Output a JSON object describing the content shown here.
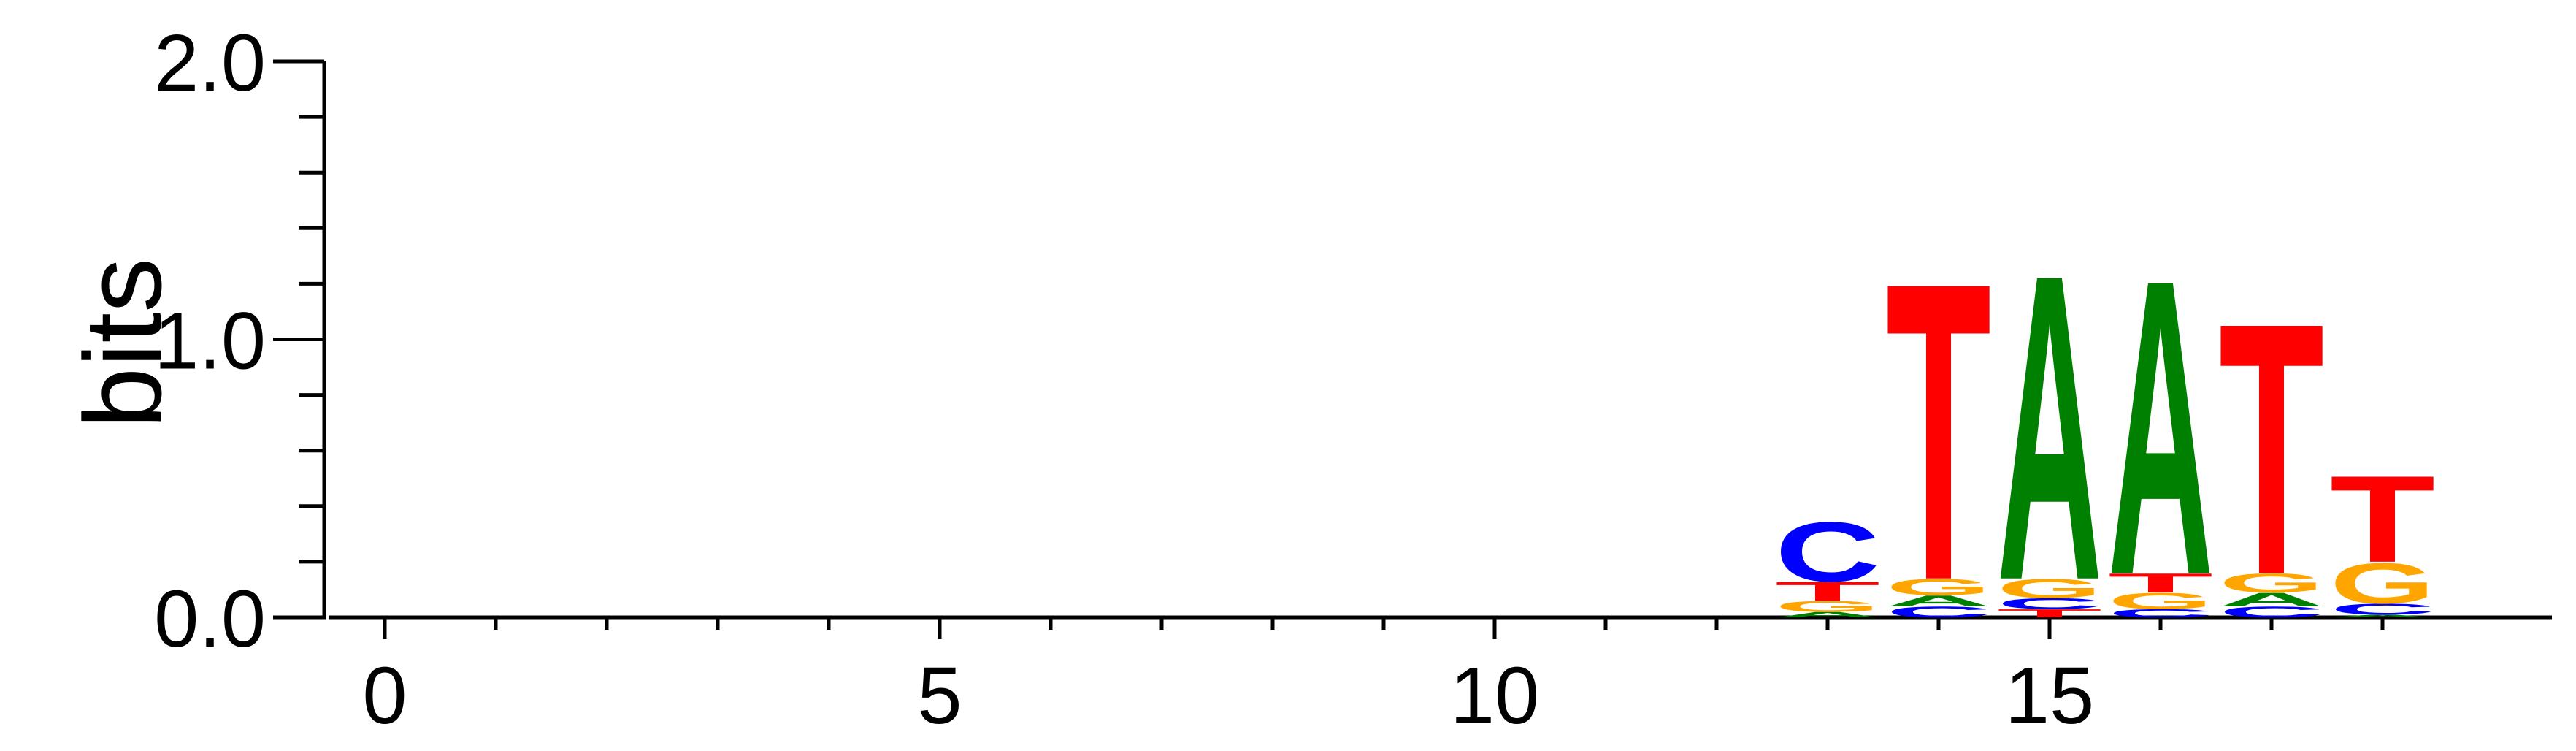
{
  "chart_data": {
    "type": "sequence-logo",
    "ylabel": "bits",
    "xlabel": "",
    "ylim": [
      0,
      2
    ],
    "xlim": [
      -0.5,
      19
    ],
    "y_major_ticks": [
      0,
      1,
      2
    ],
    "y_major_labels": [
      "0.0",
      "1.0",
      "2.0"
    ],
    "y_minor_step": 0.2,
    "x_major_ticks": [
      0,
      5,
      10,
      15
    ],
    "x_major_labels": [
      "0",
      "5",
      "10",
      "15"
    ],
    "x_minor_ticks": [
      1,
      2,
      3,
      4,
      6,
      7,
      8,
      9,
      11,
      12,
      13,
      14,
      16,
      17,
      18
    ],
    "colors": {
      "A": "#008000",
      "C": "#0000ff",
      "G": "#ffa500",
      "T": "#ff0000"
    },
    "positions": [
      {
        "x": 13,
        "letters": [
          {
            "letter": "A",
            "bits": 0.02
          },
          {
            "letter": "G",
            "bits": 0.04
          },
          {
            "letter": "T",
            "bits": 0.07
          },
          {
            "letter": "C",
            "bits": 0.22
          }
        ]
      },
      {
        "x": 14,
        "letters": [
          {
            "letter": "C",
            "bits": 0.04
          },
          {
            "letter": "A",
            "bits": 0.04
          },
          {
            "letter": "G",
            "bits": 0.06
          },
          {
            "letter": "T",
            "bits": 1.1
          }
        ]
      },
      {
        "x": 15,
        "letters": [
          {
            "letter": "T",
            "bits": 0.03
          },
          {
            "letter": "C",
            "bits": 0.04
          },
          {
            "letter": "G",
            "bits": 0.07
          },
          {
            "letter": "A",
            "bits": 1.13
          }
        ]
      },
      {
        "x": 16,
        "letters": [
          {
            "letter": "C",
            "bits": 0.03
          },
          {
            "letter": "G",
            "bits": 0.06
          },
          {
            "letter": "T",
            "bits": 0.07
          },
          {
            "letter": "A",
            "bits": 1.09
          }
        ]
      },
      {
        "x": 17,
        "letters": [
          {
            "letter": "C",
            "bits": 0.04
          },
          {
            "letter": "A",
            "bits": 0.05
          },
          {
            "letter": "G",
            "bits": 0.07
          },
          {
            "letter": "T",
            "bits": 0.93
          }
        ]
      },
      {
        "x": 18,
        "letters": [
          {
            "letter": "A",
            "bits": 0.01
          },
          {
            "letter": "C",
            "bits": 0.04
          },
          {
            "letter": "G",
            "bits": 0.15
          },
          {
            "letter": "T",
            "bits": 0.32
          }
        ]
      }
    ]
  }
}
